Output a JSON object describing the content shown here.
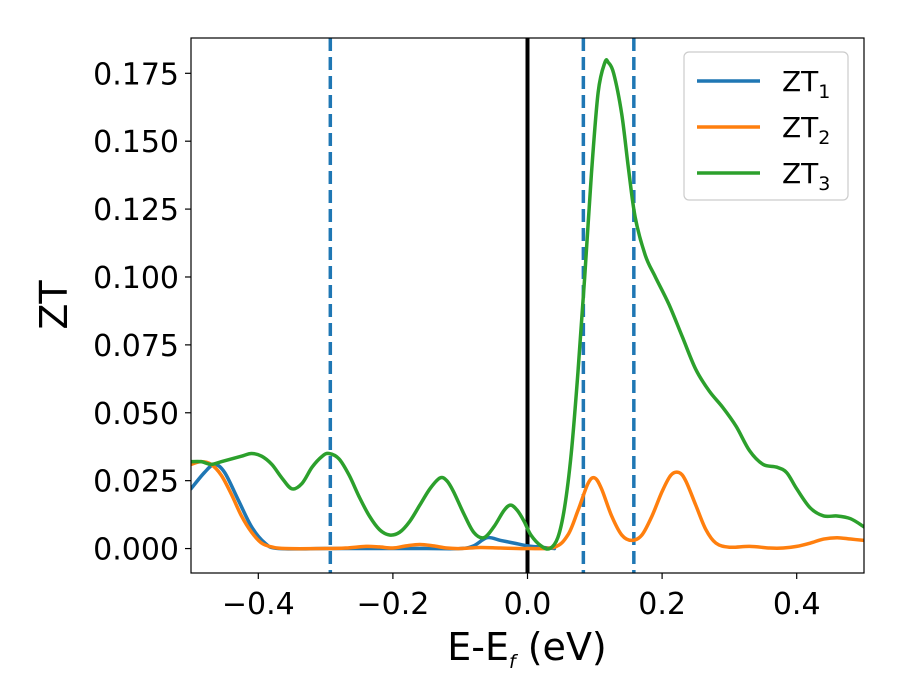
{
  "chart_data": {
    "type": "line",
    "title": "",
    "xlabel": {
      "main": "E-E",
      "sub": "f",
      "suffix": " (eV)"
    },
    "ylabel": "ZT",
    "xlim": [
      -0.5,
      0.5
    ],
    "ylim": [
      -0.009,
      0.188
    ],
    "xticks": [
      -0.4,
      -0.2,
      0.0,
      0.2,
      0.4
    ],
    "xtick_labels": [
      "−0.4",
      "−0.2",
      "0.0",
      "0.2",
      "0.4"
    ],
    "yticks": [
      0.0,
      0.025,
      0.05,
      0.075,
      0.1,
      0.125,
      0.15,
      0.175
    ],
    "ytick_labels": [
      "0.000",
      "0.025",
      "0.050",
      "0.075",
      "0.100",
      "0.125",
      "0.150",
      "0.175"
    ],
    "grid": false,
    "legend_position": "top-right",
    "vlines": [
      {
        "x": -0.293,
        "style": "dashed",
        "color": "#1f77b4"
      },
      {
        "x": 0.0,
        "style": "solid",
        "color": "#000000"
      },
      {
        "x": 0.083,
        "style": "dashed",
        "color": "#1f77b4"
      },
      {
        "x": 0.158,
        "style": "dashed",
        "color": "#1f77b4"
      }
    ],
    "series": [
      {
        "name": {
          "main": "ZT",
          "sub": "1"
        },
        "color": "#1f77b4",
        "points": [
          [
            -0.5,
            0.022
          ],
          [
            -0.48,
            0.028
          ],
          [
            -0.465,
            0.031
          ],
          [
            -0.45,
            0.028
          ],
          [
            -0.43,
            0.018
          ],
          [
            -0.41,
            0.008
          ],
          [
            -0.39,
            0.002
          ],
          [
            -0.37,
            0.0
          ],
          [
            -0.3,
            0.0
          ],
          [
            -0.25,
            0.0
          ],
          [
            -0.2,
            0.0
          ],
          [
            -0.15,
            0.0
          ],
          [
            -0.1,
            0.0
          ],
          [
            -0.08,
            0.001
          ],
          [
            -0.06,
            0.004
          ],
          [
            -0.04,
            0.003
          ],
          [
            -0.02,
            0.002
          ],
          [
            0.0,
            0.001
          ],
          [
            0.02,
            0.0005
          ],
          [
            0.04,
            0.0
          ]
        ]
      },
      {
        "name": {
          "main": "ZT",
          "sub": "2"
        },
        "color": "#ff7f0e",
        "points": [
          [
            -0.5,
            0.031
          ],
          [
            -0.485,
            0.032
          ],
          [
            -0.47,
            0.031
          ],
          [
            -0.455,
            0.027
          ],
          [
            -0.44,
            0.02
          ],
          [
            -0.425,
            0.012
          ],
          [
            -0.41,
            0.006
          ],
          [
            -0.395,
            0.002
          ],
          [
            -0.38,
            0.0006
          ],
          [
            -0.36,
            0.0
          ],
          [
            -0.3,
            0.0
          ],
          [
            -0.27,
            0.0002
          ],
          [
            -0.24,
            0.0008
          ],
          [
            -0.22,
            0.0006
          ],
          [
            -0.2,
            0.0002
          ],
          [
            -0.18,
            0.001
          ],
          [
            -0.16,
            0.0015
          ],
          [
            -0.14,
            0.001
          ],
          [
            -0.12,
            0.0002
          ],
          [
            -0.1,
            0.0
          ],
          [
            -0.07,
            0.0004
          ],
          [
            -0.04,
            0.0002
          ],
          [
            0.0,
            0.0
          ],
          [
            0.04,
            0.0005
          ],
          [
            0.06,
            0.005
          ],
          [
            0.075,
            0.014
          ],
          [
            0.09,
            0.024
          ],
          [
            0.1,
            0.026
          ],
          [
            0.11,
            0.022
          ],
          [
            0.125,
            0.012
          ],
          [
            0.14,
            0.005
          ],
          [
            0.155,
            0.003
          ],
          [
            0.17,
            0.005
          ],
          [
            0.185,
            0.012
          ],
          [
            0.2,
            0.021
          ],
          [
            0.213,
            0.027
          ],
          [
            0.225,
            0.028
          ],
          [
            0.235,
            0.025
          ],
          [
            0.25,
            0.016
          ],
          [
            0.265,
            0.007
          ],
          [
            0.28,
            0.002
          ],
          [
            0.3,
            0.0005
          ],
          [
            0.33,
            0.0008
          ],
          [
            0.36,
            0.0002
          ],
          [
            0.38,
            0.0002
          ],
          [
            0.4,
            0.0008
          ],
          [
            0.42,
            0.002
          ],
          [
            0.44,
            0.0035
          ],
          [
            0.46,
            0.004
          ],
          [
            0.48,
            0.0035
          ],
          [
            0.5,
            0.003
          ]
        ]
      },
      {
        "name": {
          "main": "ZT",
          "sub": "3"
        },
        "color": "#2ca02c",
        "points": [
          [
            -0.5,
            0.032
          ],
          [
            -0.485,
            0.032
          ],
          [
            -0.47,
            0.031
          ],
          [
            -0.455,
            0.032
          ],
          [
            -0.44,
            0.033
          ],
          [
            -0.425,
            0.034
          ],
          [
            -0.41,
            0.035
          ],
          [
            -0.395,
            0.034
          ],
          [
            -0.38,
            0.031
          ],
          [
            -0.365,
            0.026
          ],
          [
            -0.35,
            0.022
          ],
          [
            -0.335,
            0.024
          ],
          [
            -0.32,
            0.03
          ],
          [
            -0.305,
            0.034
          ],
          [
            -0.295,
            0.035
          ],
          [
            -0.28,
            0.033
          ],
          [
            -0.265,
            0.027
          ],
          [
            -0.25,
            0.019
          ],
          [
            -0.235,
            0.012
          ],
          [
            -0.22,
            0.007
          ],
          [
            -0.205,
            0.005
          ],
          [
            -0.19,
            0.006
          ],
          [
            -0.175,
            0.01
          ],
          [
            -0.16,
            0.016
          ],
          [
            -0.145,
            0.022
          ],
          [
            -0.13,
            0.026
          ],
          [
            -0.12,
            0.025
          ],
          [
            -0.11,
            0.021
          ],
          [
            -0.095,
            0.013
          ],
          [
            -0.08,
            0.006
          ],
          [
            -0.065,
            0.004
          ],
          [
            -0.05,
            0.008
          ],
          [
            -0.035,
            0.014
          ],
          [
            -0.025,
            0.016
          ],
          [
            -0.015,
            0.014
          ],
          [
            -0.005,
            0.01
          ],
          [
            0.005,
            0.005
          ],
          [
            0.02,
            0.001
          ],
          [
            0.033,
            0.0
          ],
          [
            0.045,
            0.004
          ],
          [
            0.055,
            0.015
          ],
          [
            0.065,
            0.035
          ],
          [
            0.075,
            0.065
          ],
          [
            0.085,
            0.1
          ],
          [
            0.095,
            0.138
          ],
          [
            0.105,
            0.168
          ],
          [
            0.115,
            0.179
          ],
          [
            0.12,
            0.179
          ],
          [
            0.128,
            0.175
          ],
          [
            0.14,
            0.16
          ],
          [
            0.15,
            0.14
          ],
          [
            0.16,
            0.122
          ],
          [
            0.175,
            0.108
          ],
          [
            0.19,
            0.1
          ],
          [
            0.21,
            0.09
          ],
          [
            0.23,
            0.078
          ],
          [
            0.25,
            0.066
          ],
          [
            0.27,
            0.058
          ],
          [
            0.29,
            0.052
          ],
          [
            0.31,
            0.045
          ],
          [
            0.33,
            0.036
          ],
          [
            0.35,
            0.031
          ],
          [
            0.37,
            0.03
          ],
          [
            0.385,
            0.028
          ],
          [
            0.4,
            0.022
          ],
          [
            0.42,
            0.015
          ],
          [
            0.44,
            0.012
          ],
          [
            0.46,
            0.012
          ],
          [
            0.48,
            0.011
          ],
          [
            0.5,
            0.008
          ]
        ]
      }
    ]
  }
}
